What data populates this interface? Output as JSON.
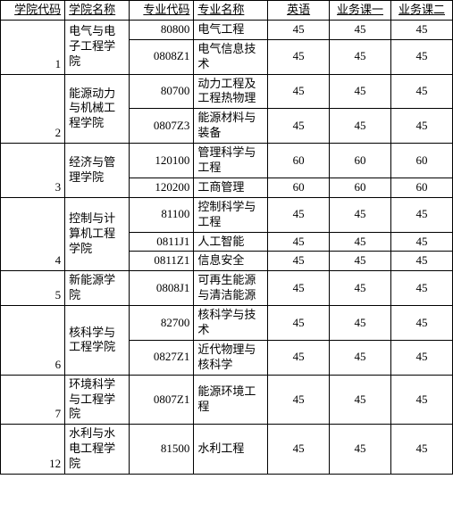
{
  "headers": [
    "学院代码",
    "学院名称",
    "专业代码",
    "专业名称",
    "英语",
    "业务课一",
    "业务课二"
  ],
  "rows": [
    {
      "collegeCode": "1",
      "collegeName": "电气与电子工程学院",
      "rowspan": 2,
      "majorCode": "80800",
      "majorName": "电气工程",
      "s1": "45",
      "s2": "45",
      "s3": "45"
    },
    {
      "majorCode": "0808Z1",
      "majorName": "电气信息技术",
      "s1": "45",
      "s2": "45",
      "s3": "45"
    },
    {
      "collegeCode": "2",
      "collegeName": "能源动力与机械工程学院",
      "rowspan": 2,
      "majorCode": "80700",
      "majorName": "动力工程及工程热物理",
      "s1": "45",
      "s2": "45",
      "s3": "45"
    },
    {
      "majorCode": "0807Z3",
      "majorName": "能源材料与装备",
      "s1": "45",
      "s2": "45",
      "s3": "45"
    },
    {
      "collegeCode": "3",
      "collegeName": "经济与管理学院",
      "rowspan": 2,
      "majorCode": "120100",
      "majorName": "管理科学与工程",
      "s1": "60",
      "s2": "60",
      "s3": "60"
    },
    {
      "majorCode": "120200",
      "majorName": "工商管理",
      "s1": "60",
      "s2": "60",
      "s3": "60"
    },
    {
      "collegeCode": "4",
      "collegeName": "控制与计算机工程学院",
      "rowspan": 3,
      "majorCode": "81100",
      "majorName": "控制科学与工程",
      "s1": "45",
      "s2": "45",
      "s3": "45"
    },
    {
      "majorCode": "0811J1",
      "majorName": "人工智能",
      "s1": "45",
      "s2": "45",
      "s3": "45"
    },
    {
      "majorCode": "0811Z1",
      "majorName": "信息安全",
      "s1": "45",
      "s2": "45",
      "s3": "45"
    },
    {
      "collegeCode": "5",
      "collegeName": "新能源学院",
      "rowspan": 1,
      "majorCode": "0808J1",
      "majorName": "可再生能源与清洁能源",
      "s1": "45",
      "s2": "45",
      "s3": "45"
    },
    {
      "collegeCode": "6",
      "collegeName": "核科学与工程学院",
      "rowspan": 2,
      "majorCode": "82700",
      "majorName": "核科学与技术",
      "s1": "45",
      "s2": "45",
      "s3": "45"
    },
    {
      "majorCode": "0827Z1",
      "majorName": "近代物理与核科学",
      "s1": "45",
      "s2": "45",
      "s3": "45"
    },
    {
      "collegeCode": "7",
      "collegeName": "环境科学与工程学院",
      "rowspan": 1,
      "majorCode": "0807Z1",
      "majorName": "能源环境工程",
      "s1": "45",
      "s2": "45",
      "s3": "45"
    },
    {
      "collegeCode": "12",
      "collegeName": "水利与水电工程学院",
      "rowspan": 1,
      "majorCode": "81500",
      "majorName": "水利工程",
      "s1": "45",
      "s2": "45",
      "s3": "45"
    }
  ]
}
